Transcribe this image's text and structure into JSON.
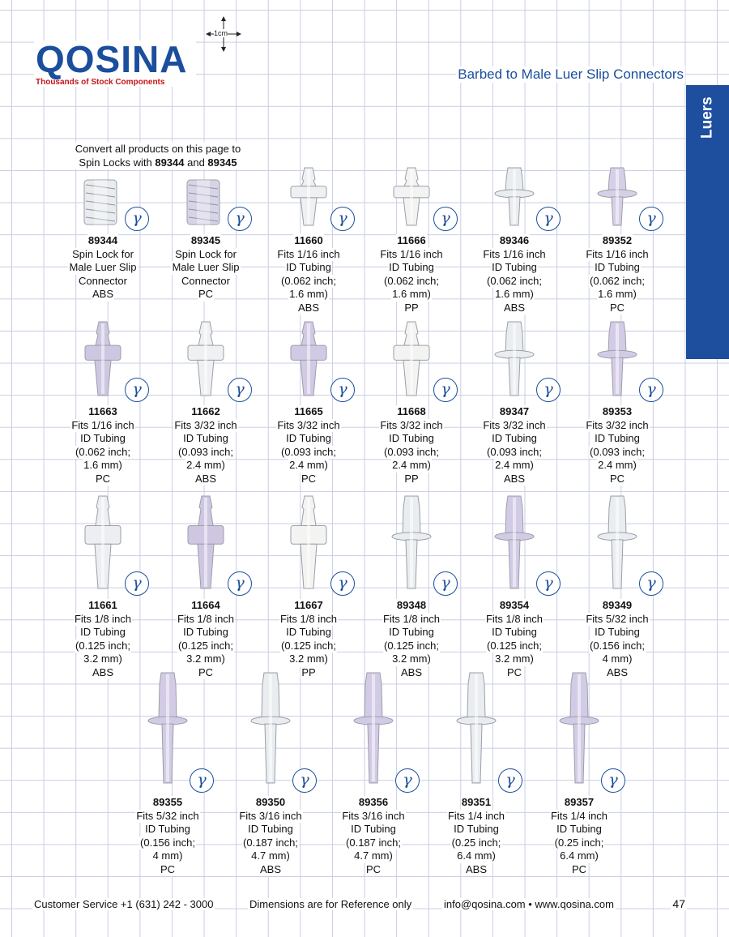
{
  "header": {
    "logo_name": "QOSINA",
    "logo_tagline": "Thousands of Stock Components",
    "scale_label": "1cm",
    "page_title": "Barbed to Male Luer Slip Connectors",
    "side_tab": "Luers"
  },
  "note": {
    "line1": "Convert all products on this page to",
    "line2_pre": "Spin Locks with ",
    "code_a": "89344",
    "line2_mid": " and ",
    "code_b": "89345"
  },
  "icon_symbol": "γ",
  "products": [
    {
      "code": "89344",
      "lines": [
        "Spin Lock for",
        "Male Luer Slip",
        "Connector",
        "ABS"
      ],
      "shape": "spinlock",
      "tint": "#e9ecef"
    },
    {
      "code": "89345",
      "lines": [
        "Spin Lock for",
        "Male Luer Slip",
        "Connector",
        "PC"
      ],
      "shape": "spinlock",
      "tint": "#d6d4e6"
    },
    {
      "code": "11660",
      "lines": [
        "Fits 1/16 inch",
        "ID Tubing",
        "(0.062 inch;",
        "1.6 mm)",
        "ABS"
      ],
      "shape": "wing",
      "tint": "#eef0f2"
    },
    {
      "code": "11666",
      "lines": [
        "Fits 1/16 inch",
        "ID Tubing",
        "(0.062 inch;",
        "1.6 mm)",
        "PP"
      ],
      "shape": "wingsmall",
      "tint": "#f3f3f1"
    },
    {
      "code": "89346",
      "lines": [
        "Fits 1/16 inch",
        "ID Tubing",
        "(0.062 inch;",
        "1.6 mm)",
        "ABS"
      ],
      "shape": "flange",
      "tint": "#eaedf0"
    },
    {
      "code": "89352",
      "lines": [
        "Fits 1/16 inch",
        "ID Tubing",
        "(0.062 inch;",
        "1.6 mm)",
        "PC"
      ],
      "shape": "flange",
      "tint": "#d7cfe8"
    },
    {
      "code": "11663",
      "lines": [
        "Fits 1/16 inch",
        "ID Tubing",
        "(0.062 inch;",
        "1.6 mm)",
        "PC"
      ],
      "shape": "wing",
      "tint": "#cfc6e2"
    },
    {
      "code": "11662",
      "lines": [
        "Fits 3/32 inch",
        "ID Tubing",
        "(0.093 inch;",
        "2.4 mm)",
        "ABS"
      ],
      "shape": "wing",
      "tint": "#eef0f2"
    },
    {
      "code": "11665",
      "lines": [
        "Fits 3/32 inch",
        "ID Tubing",
        "(0.093 inch;",
        "2.4 mm)",
        "PC"
      ],
      "shape": "wing",
      "tint": "#d2c9e4"
    },
    {
      "code": "11668",
      "lines": [
        "Fits 3/32 inch",
        "ID Tubing",
        "(0.093 inch;",
        "2.4 mm)",
        "PP"
      ],
      "shape": "wing",
      "tint": "#f3f3f1"
    },
    {
      "code": "89347",
      "lines": [
        "Fits 3/32 inch",
        "ID Tubing",
        "(0.093 inch;",
        "2.4 mm)",
        "ABS"
      ],
      "shape": "flange",
      "tint": "#eaedf0"
    },
    {
      "code": "89353",
      "lines": [
        "Fits 3/32 inch",
        "ID Tubing",
        "(0.093 inch;",
        "2.4 mm)",
        "PC"
      ],
      "shape": "flange",
      "tint": "#d3cbe6"
    },
    {
      "code": "11661",
      "lines": [
        "Fits 1/8 inch",
        "ID Tubing",
        "(0.125 inch;",
        "3.2 mm)",
        "ABS"
      ],
      "shape": "wing",
      "tint": "#eceef1"
    },
    {
      "code": "11664",
      "lines": [
        "Fits 1/8 inch",
        "ID Tubing",
        "(0.125 inch;",
        "3.2 mm)",
        "PC"
      ],
      "shape": "wing",
      "tint": "#cfc6e2"
    },
    {
      "code": "11667",
      "lines": [
        "Fits 1/8 inch",
        "ID Tubing",
        "(0.125 inch;",
        "3.2 mm)",
        "PP"
      ],
      "shape": "wing",
      "tint": "#f3f3f1"
    },
    {
      "code": "89348",
      "lines": [
        "Fits 1/8 inch",
        "ID Tubing",
        "(0.125 inch;",
        "3.2 mm)",
        "ABS"
      ],
      "shape": "flange",
      "tint": "#eaedf0"
    },
    {
      "code": "89354",
      "lines": [
        "Fits 1/8 inch",
        "ID Tubing",
        "(0.125 inch;",
        "3.2 mm)",
        "PC"
      ],
      "shape": "flange",
      "tint": "#d3cbe6"
    },
    {
      "code": "89349",
      "lines": [
        "Fits 5/32  inch",
        "ID Tubing",
        "(0.156 inch;",
        "4 mm)",
        "ABS"
      ],
      "shape": "flange",
      "tint": "#eaedf0"
    },
    {
      "code": "89355",
      "lines": [
        "Fits 5/32 inch",
        "ID Tubing",
        "(0.156 inch;",
        "4 mm)",
        "PC"
      ],
      "shape": "flange",
      "tint": "#d3cbe6"
    },
    {
      "code": "89350",
      "lines": [
        "Fits 3/16 inch",
        "ID Tubing",
        "(0.187 inch;",
        "4.7 mm)",
        "ABS"
      ],
      "shape": "flange",
      "tint": "#eaedf0"
    },
    {
      "code": "89356",
      "lines": [
        "Fits 3/16 inch",
        "ID Tubing",
        "(0.187 inch;",
        "4.7 mm)",
        "PC"
      ],
      "shape": "flange",
      "tint": "#d3cbe6"
    },
    {
      "code": "89351",
      "lines": [
        "Fits 1/4 inch",
        "ID Tubing",
        "(0.25 inch;",
        "6.4 mm)",
        "ABS"
      ],
      "shape": "flange",
      "tint": "#eaedf0"
    },
    {
      "code": "89357",
      "lines": [
        "Fits 1/4 inch",
        "ID Tubing",
        "(0.25 inch;",
        "6.4 mm)",
        "PC"
      ],
      "shape": "flange",
      "tint": "#d3cbe6"
    }
  ],
  "footer": {
    "service": "Customer Service +1 (631) 242 - 3000",
    "disclaimer": "Dimensions are for Reference only",
    "contact": "info@qosina.com • www.qosina.com",
    "page_number": "47"
  },
  "colors": {
    "brand_blue": "#1b4e9c",
    "brand_red": "#c4161c",
    "tab_blue": "#1e4e9e"
  }
}
